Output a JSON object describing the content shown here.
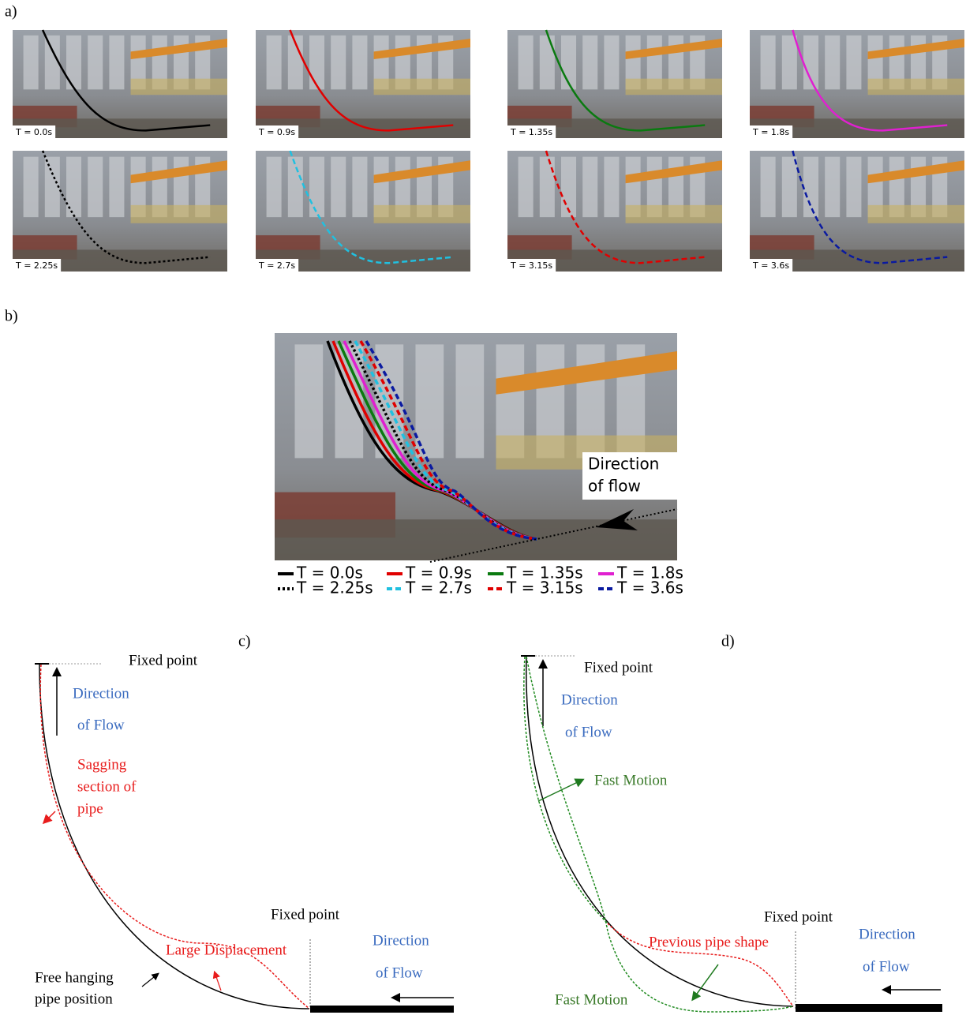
{
  "a": {
    "label": "a)",
    "frames": [
      {
        "label": "T = 0.0s",
        "color": "#000000",
        "dash": "solid"
      },
      {
        "label": "T = 0.9s",
        "color": "#e00000",
        "dash": "solid"
      },
      {
        "label": "T = 1.35s",
        "color": "#0a7a10",
        "dash": "solid"
      },
      {
        "label": "T = 1.8s",
        "color": "#e020d0",
        "dash": "solid"
      },
      {
        "label": "T = 2.25s",
        "color": "#000000",
        "dash": "dotted"
      },
      {
        "label": "T = 2.7s",
        "color": "#20c0e0",
        "dash": "dashed"
      },
      {
        "label": "T = 3.15s",
        "color": "#e00000",
        "dash": "dashed"
      },
      {
        "label": "T = 3.6s",
        "color": "#0a1aa0",
        "dash": "dashed"
      }
    ]
  },
  "b": {
    "label": "b)",
    "annotation": [
      "Direction",
      "of flow"
    ],
    "legend": [
      {
        "label": "T = 0.0s",
        "color": "#000000",
        "dash": "solid"
      },
      {
        "label": "T = 0.9s",
        "color": "#e00000",
        "dash": "solid"
      },
      {
        "label": "T = 1.35s",
        "color": "#0a7a10",
        "dash": "solid"
      },
      {
        "label": "T = 1.8s",
        "color": "#e020d0",
        "dash": "solid"
      },
      {
        "label": "T = 2.25s",
        "color": "#000000",
        "dash": "dotted"
      },
      {
        "label": "T = 2.7s",
        "color": "#20c0e0",
        "dash": "dashed"
      },
      {
        "label": "T = 3.15s",
        "color": "#e00000",
        "dash": "dashed"
      },
      {
        "label": "T = 3.6s",
        "color": "#0a1aa0",
        "dash": "dashed"
      }
    ]
  },
  "c": {
    "label": "c)",
    "fixed_top": "Fixed point",
    "direction_top": [
      "Direction",
      "of Flow"
    ],
    "sagging": [
      "Sagging",
      "section of",
      "pipe"
    ],
    "fixed_bottom": "Fixed point",
    "large_displacement": "Large Displacement",
    "direction_bottom": [
      "Direction",
      "of Flow"
    ],
    "free_hanging": [
      "Free hanging",
      "pipe position"
    ]
  },
  "d": {
    "label": "d)",
    "fixed_top": "Fixed point",
    "direction_top": [
      "Direction",
      "of Flow"
    ],
    "fast_motion_top": "Fast Motion",
    "fixed_bottom": "Fixed point",
    "previous_shape": "Previous pipe shape",
    "direction_bottom": [
      "Direction",
      "of Flow"
    ],
    "fast_motion_bottom": "Fast Motion"
  }
}
